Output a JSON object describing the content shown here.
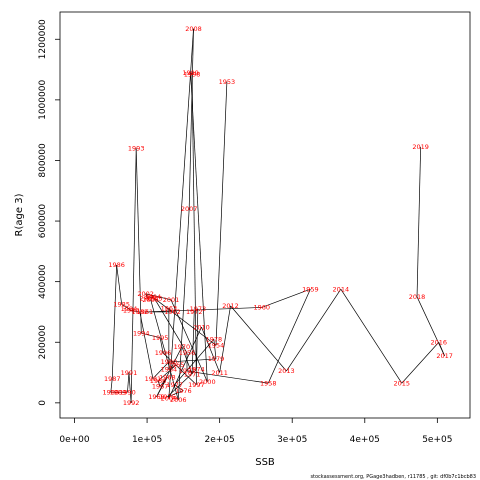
{
  "chart_data": {
    "type": "line",
    "xlabel": "SSB",
    "ylabel": "R(age 3)",
    "xlim": [
      -20000,
      545000
    ],
    "ylim": [
      -50000,
      1290000
    ],
    "xticks": [
      0,
      100000,
      200000,
      300000,
      400000,
      500000
    ],
    "xtick_labels": [
      "0e+00",
      "1e+05",
      "2e+05",
      "3e+05",
      "4e+05",
      "5e+05"
    ],
    "yticks": [
      0,
      200000,
      400000,
      600000,
      800000,
      1000000,
      1200000
    ],
    "ytick_labels": [
      "0",
      "200000",
      "400000",
      "600000",
      "800000",
      "1000000",
      "1200000"
    ],
    "grid": false,
    "legend": "none",
    "line_color": "#000000",
    "label_color": "#ff0000",
    "points": [
      {
        "label": "1954",
        "x": 195000,
        "y": 190000
      },
      {
        "label": "1955",
        "x": 110000,
        "y": 345000
      },
      {
        "label": "1956",
        "x": 155000,
        "y": 165000
      },
      {
        "label": "1957",
        "x": 155000,
        "y": 105000
      },
      {
        "label": "1958",
        "x": 267000,
        "y": 65000
      },
      {
        "label": "1959",
        "x": 325000,
        "y": 375000
      },
      {
        "label": "1960",
        "x": 258000,
        "y": 315000
      },
      {
        "label": "1961",
        "x": 97000,
        "y": 300000
      },
      {
        "label": "1962",
        "x": 135000,
        "y": 300000
      },
      {
        "label": "1963",
        "x": 130000,
        "y": 312000
      },
      {
        "label": "1964",
        "x": 130000,
        "y": 110000
      },
      {
        "label": "1965",
        "x": 140000,
        "y": 125000
      },
      {
        "label": "1966",
        "x": 115000,
        "y": 72000
      },
      {
        "label": "1967",
        "x": 118000,
        "y": 55000
      },
      {
        "label": "1968",
        "x": 128000,
        "y": 85000
      },
      {
        "label": "1969",
        "x": 113000,
        "y": 20000
      },
      {
        "label": "1970",
        "x": 148000,
        "y": 185000
      },
      {
        "label": "1971",
        "x": 162000,
        "y": 95000
      },
      {
        "label": "1972",
        "x": 165000,
        "y": 300000
      },
      {
        "label": "1973",
        "x": 170000,
        "y": 310000
      },
      {
        "label": "1974",
        "x": 168000,
        "y": 110000
      },
      {
        "label": "1975",
        "x": 128000,
        "y": 20000
      },
      {
        "label": "1976",
        "x": 150000,
        "y": 40000
      },
      {
        "label": "1977",
        "x": 138000,
        "y": 60000
      },
      {
        "label": "1978",
        "x": 192000,
        "y": 210000
      },
      {
        "label": "1979",
        "x": 195000,
        "y": 145000
      },
      {
        "label": "1980",
        "x": 130000,
        "y": 135000
      },
      {
        "label": "1981",
        "x": 108000,
        "y": 80000
      },
      {
        "label": "1982",
        "x": 90000,
        "y": 300000
      },
      {
        "label": "1983",
        "x": 78000,
        "y": 305000
      },
      {
        "label": "1984",
        "x": 75000,
        "y": 310000
      },
      {
        "label": "1985",
        "x": 65000,
        "y": 325000
      },
      {
        "label": "1986",
        "x": 58000,
        "y": 455000
      },
      {
        "label": "1987",
        "x": 52000,
        "y": 80000
      },
      {
        "label": "1988",
        "x": 50000,
        "y": 35000
      },
      {
        "label": "1989",
        "x": 60000,
        "y": 35000
      },
      {
        "label": "1990",
        "x": 73000,
        "y": 35000
      },
      {
        "label": "1991",
        "x": 75000,
        "y": 100000
      },
      {
        "label": "1992",
        "x": 78000,
        "y": 0
      },
      {
        "label": "1993",
        "x": 85000,
        "y": 840000
      },
      {
        "label": "1994",
        "x": 92000,
        "y": 230000
      },
      {
        "label": "1995",
        "x": 118000,
        "y": 215000
      },
      {
        "label": "1996",
        "x": 122000,
        "y": 165000
      },
      {
        "label": "1997",
        "x": 168000,
        "y": 60000
      },
      {
        "label": "1998",
        "x": 162000,
        "y": 1085000
      },
      {
        "label": "1999",
        "x": 160000,
        "y": 1090000
      },
      {
        "label": "2000",
        "x": 183000,
        "y": 70000
      },
      {
        "label": "2001",
        "x": 133000,
        "y": 340000
      },
      {
        "label": "2002",
        "x": 98000,
        "y": 360000
      },
      {
        "label": "2003",
        "x": 101000,
        "y": 345000
      },
      {
        "label": "2004",
        "x": 108000,
        "y": 350000
      },
      {
        "label": "2005",
        "x": 105000,
        "y": 340000
      },
      {
        "label": "2006",
        "x": 143000,
        "y": 10000
      },
      {
        "label": "2007",
        "x": 158000,
        "y": 640000
      },
      {
        "label": "2008",
        "x": 164000,
        "y": 1235000
      },
      {
        "label": "2009",
        "x": 130000,
        "y": 15000
      },
      {
        "label": "2010",
        "x": 175000,
        "y": 250000
      },
      {
        "label": "2011",
        "x": 200000,
        "y": 100000
      },
      {
        "label": "2012",
        "x": 215000,
        "y": 320000
      },
      {
        "label": "2013",
        "x": 292000,
        "y": 105000
      },
      {
        "label": "2014",
        "x": 367000,
        "y": 375000
      },
      {
        "label": "2015",
        "x": 451000,
        "y": 65000
      },
      {
        "label": "2016",
        "x": 502000,
        "y": 200000
      },
      {
        "label": "2017",
        "x": 510000,
        "y": 155000
      },
      {
        "label": "2018",
        "x": 472000,
        "y": 350000
      },
      {
        "label": "2019",
        "x": 477000,
        "y": 845000
      },
      {
        "label": "1953",
        "x": 210000,
        "y": 1060000
      }
    ],
    "connect_order": [
      "1953",
      "1954",
      "1955",
      "1956",
      "1957",
      "1958",
      "1959",
      "1960",
      "1961",
      "1962",
      "1963",
      "1964",
      "1965",
      "1966",
      "1967",
      "1968",
      "1969",
      "1970",
      "1971",
      "1972",
      "1973",
      "1974",
      "1975",
      "1976",
      "1977",
      "1978",
      "1979",
      "1980",
      "1981",
      "1982",
      "1983",
      "1984",
      "1985",
      "1986",
      "1987",
      "1988",
      "1989",
      "1990",
      "1991",
      "1992",
      "1993",
      "1994",
      "1995",
      "1996",
      "1997",
      "1998",
      "1999",
      "2000",
      "2001",
      "2002",
      "2003",
      "2004",
      "2005",
      "2006",
      "2007",
      "2008",
      "2009",
      "2010",
      "2011",
      "2012",
      "2013",
      "2014",
      "2015",
      "2016",
      "2017",
      "2018",
      "2019"
    ]
  },
  "footer": "stockassessment.org, PGage3hadben, r11785 , git: df0b7c1bcb83"
}
